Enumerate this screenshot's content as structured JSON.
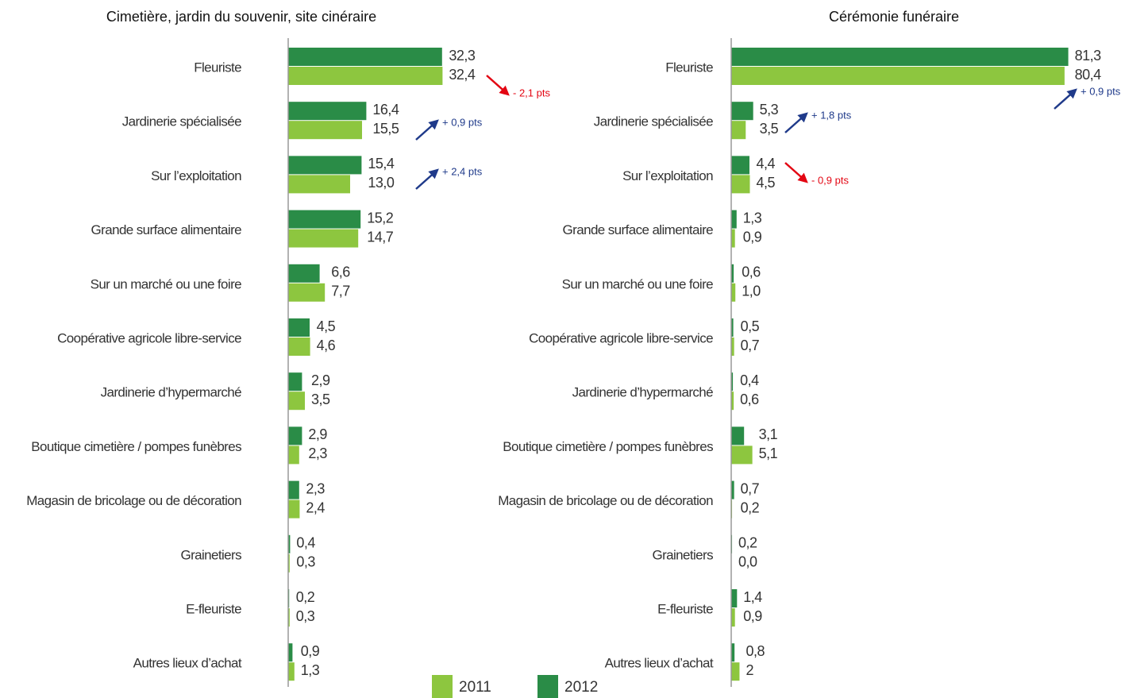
{
  "chart_data": [
    {
      "type": "bar",
      "title": "Cimetière, jardin du souvenir, site cinéraire",
      "categories": [
        "Fleuriste",
        "Jardinerie spécialisée",
        "Sur l’exploitation",
        "Grande  surface alimentaire",
        "Sur un marché ou une foire",
        "Coopérative agricole libre-service",
        "Jardinerie d’hypermarché",
        "Boutique cimetière / pompes funèbres",
        "Magasin de bricolage ou de décoration",
        "Grainetiers",
        "E-fleuriste",
        "Autres lieux d’achat"
      ],
      "series": [
        {
          "name": "2011",
          "color": "#8dc63f",
          "values": [
            32.4,
            15.5,
            13.0,
            14.7,
            7.7,
            4.6,
            3.5,
            2.3,
            2.4,
            0.3,
            0.3,
            1.3
          ],
          "value_labels": [
            "32,4",
            "15,5",
            "13,0",
            "14,7",
            "7,7",
            "4,6",
            "3,5",
            "2,3",
            "2,4",
            "0,3",
            "0,3",
            "1,3"
          ]
        },
        {
          "name": "2012",
          "color": "#2a8c47",
          "values": [
            32.3,
            16.4,
            15.4,
            15.2,
            6.6,
            4.5,
            2.9,
            2.9,
            2.3,
            0.4,
            0.2,
            0.9
          ],
          "value_labels": [
            "32,3",
            "16,4",
            "15,4",
            "15,2",
            "6,6",
            "4,5",
            "2,9",
            "2,9",
            "2,3",
            "0,4",
            "0,2",
            "0,9"
          ]
        }
      ],
      "xlim": [
        0,
        40
      ],
      "annotations": [
        {
          "text": "- 2,1 pts",
          "color": "#e30613"
        },
        {
          "text": "+ 0,9 pts",
          "color": "#1f3a8a"
        },
        {
          "text": "+ 2,4 pts",
          "color": "#1f3a8a"
        }
      ]
    },
    {
      "type": "bar",
      "title": "Cérémonie funéraire",
      "categories": [
        "Fleuriste",
        "Jardinerie spécialisée",
        "Sur l’exploitation",
        "Grande  surface alimentaire",
        "Sur un marché ou une foire",
        "Coopérative agricole libre-service",
        "Jardinerie d’hypermarché",
        "Boutique cimetière / pompes funèbres",
        "Magasin de bricolage ou de décoration",
        "Grainetiers",
        "E-fleuriste",
        "Autres lieux d’achat"
      ],
      "series": [
        {
          "name": "2011",
          "color": "#8dc63f",
          "values": [
            80.4,
            3.5,
            4.5,
            0.9,
            1.0,
            0.7,
            0.6,
            5.1,
            0.2,
            0.0,
            0.9,
            2
          ],
          "value_labels": [
            "80,4",
            "3,5",
            "4,5",
            "0,9",
            "1,0",
            "0,7",
            "0,6",
            "5,1",
            "0,2",
            "0,0",
            "0,9",
            "2"
          ]
        },
        {
          "name": "2012",
          "color": "#2a8c47",
          "values": [
            81.3,
            5.3,
            4.4,
            1.3,
            0.6,
            0.5,
            0.4,
            3.1,
            0.7,
            0.2,
            1.4,
            0.8
          ],
          "value_labels": [
            "81,3",
            "5,3",
            "4,4",
            "1,3",
            "0,6",
            "0,5",
            "0,4",
            "3,1",
            "0,7",
            "0,2",
            "1,4",
            "0,8"
          ]
        }
      ],
      "xlim": [
        0,
        90
      ],
      "annotations": [
        {
          "text": "+ 0,9 pts",
          "color": "#1f3a8a"
        },
        {
          "text": "+ 1,8 pts",
          "color": "#1f3a8a"
        },
        {
          "text": "- 0,9 pts",
          "color": "#e30613"
        }
      ]
    }
  ]
}
